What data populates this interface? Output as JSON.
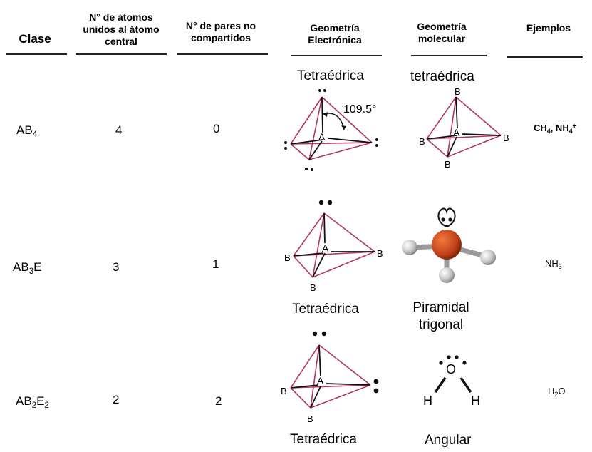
{
  "headers": {
    "clase": "Clase",
    "atomos": [
      "N° de átomos",
      "unidos al átomo",
      "central"
    ],
    "pares": [
      "N° de pares no",
      "compartidos"
    ],
    "geo_electronica": [
      "Geometría",
      "Electrónica"
    ],
    "geo_molecular": [
      "Geometría",
      "molecular"
    ],
    "ejemplos": "Ejemplos"
  },
  "rows": [
    {
      "clase": {
        "base": "AB",
        "sub1": "4",
        "mid": "",
        "sub2": ""
      },
      "atomos": "4",
      "pares": "0",
      "geo_electronica": "Tetraédrica",
      "geo_molecular": [
        "tetraédrica"
      ],
      "angle_label": "109.5°",
      "ejemplo": {
        "p1": "CH",
        "s1": "4",
        "p2": ", NH",
        "s2": "4",
        "sup": "+"
      }
    },
    {
      "clase": {
        "base": "AB",
        "sub1": "3",
        "mid": "E",
        "sub2": ""
      },
      "atomos": "3",
      "pares": "1",
      "geo_electronica": "Tetraédrica",
      "geo_molecular": [
        "Piramidal",
        "trigonal"
      ],
      "ejemplo": {
        "p1": "NH",
        "s1": "3",
        "p2": ""
      }
    },
    {
      "clase": {
        "base": "AB",
        "sub1": "2",
        "mid": "E",
        "sub2": "2"
      },
      "atomos": "2",
      "pares": "2",
      "geo_electronica": "Tetraédrica",
      "geo_molecular": [
        "Angular"
      ],
      "ejemplo": {
        "p1": "H",
        "s1": "2",
        "p2": "O"
      }
    }
  ],
  "atoms": {
    "center": "A",
    "ligand": "B",
    "oxygen": "O",
    "hydrogen": "H"
  },
  "colors": {
    "edge_pink": "#b5365a",
    "bond_dark": "#111111",
    "sphere_center": "#c0401a",
    "sphere_ligand": "#c8c8c8"
  }
}
